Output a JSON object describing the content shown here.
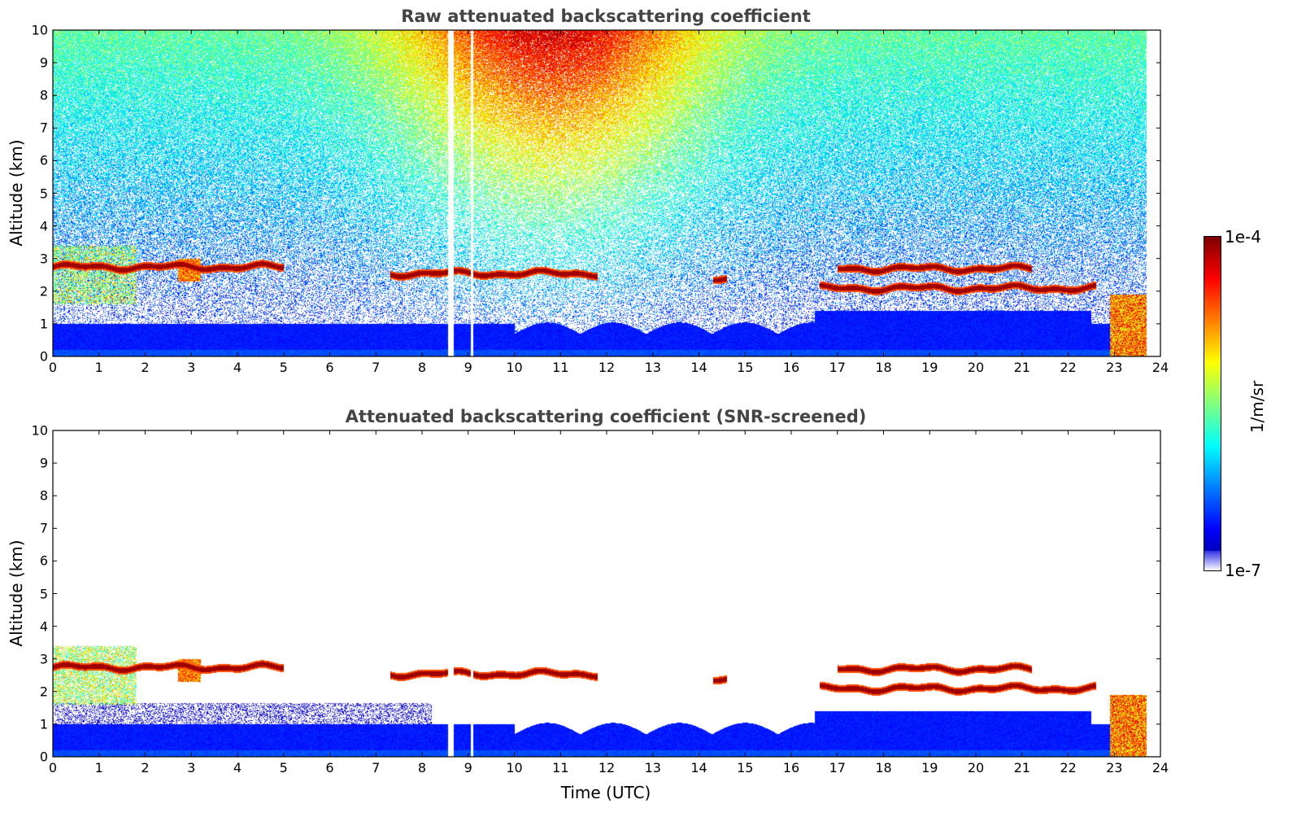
{
  "chart_data": [
    {
      "type": "heatmap",
      "title": "Raw attenuated backscattering coefficient",
      "xlabel": "",
      "ylabel": "Altitude (km)",
      "xlim": [
        0,
        24
      ],
      "ylim": [
        0,
        10
      ],
      "x_ticks": [
        "0",
        "1",
        "2",
        "3",
        "4",
        "5",
        "6",
        "7",
        "8",
        "9",
        "10",
        "11",
        "12",
        "13",
        "14",
        "15",
        "16",
        "17",
        "18",
        "19",
        "20",
        "21",
        "22",
        "23",
        "24"
      ],
      "y_ticks": [
        "0",
        "1",
        "2",
        "3",
        "4",
        "5",
        "6",
        "7",
        "8",
        "9",
        "10"
      ],
      "data_extent_hours": [
        0,
        23.7
      ],
      "missing_data_hours": [
        [
          8.55,
          8.68
        ],
        [
          9.05,
          9.1
        ]
      ],
      "cloud_layers_km": [
        {
          "start": 0.0,
          "end": 5.0,
          "altitude": 2.75
        },
        {
          "start": 7.3,
          "end": 11.8,
          "altitude": 2.55
        },
        {
          "start": 14.3,
          "end": 14.6,
          "altitude": 2.35
        },
        {
          "start": 16.6,
          "end": 22.6,
          "altitude": 2.1
        },
        {
          "start": 17.0,
          "end": 21.2,
          "altitude": 2.7
        }
      ],
      "boundary_layer_top_km": 1.0
    },
    {
      "type": "heatmap",
      "title": "Attenuated backscattering coefficient (SNR-screened)",
      "xlabel": "Time (UTC)",
      "ylabel": "Altitude (km)",
      "xlim": [
        0,
        24
      ],
      "ylim": [
        0,
        10
      ],
      "x_ticks": [
        "0",
        "1",
        "2",
        "3",
        "4",
        "5",
        "6",
        "7",
        "8",
        "9",
        "10",
        "11",
        "12",
        "13",
        "14",
        "15",
        "16",
        "17",
        "18",
        "19",
        "20",
        "21",
        "22",
        "23",
        "24"
      ],
      "y_ticks": [
        "0",
        "1",
        "2",
        "3",
        "4",
        "5",
        "6",
        "7",
        "8",
        "9",
        "10"
      ],
      "data_extent_hours": [
        0,
        23.7
      ],
      "missing_data_hours": [
        [
          8.55,
          8.68
        ],
        [
          9.05,
          9.1
        ]
      ]
    }
  ],
  "colorbar": {
    "min_label": "1e-7",
    "max_label": "1e-4",
    "label": "1/m/sr",
    "scale": "log",
    "colormap": "jet"
  }
}
